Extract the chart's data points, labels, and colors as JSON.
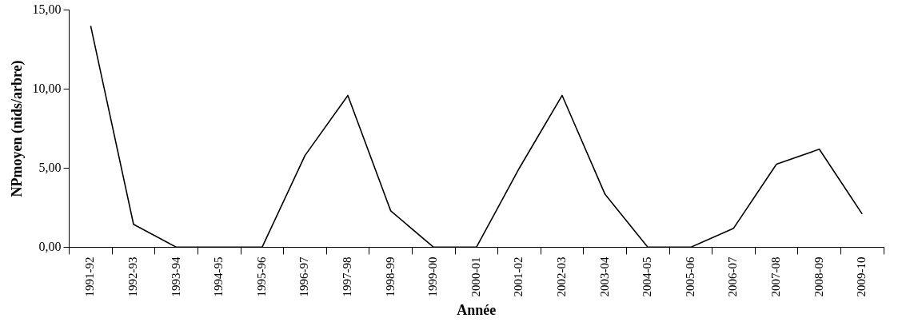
{
  "chart_data": {
    "type": "line",
    "xlabel": "Année",
    "ylabel": "NPmoyen (nids/arbre)",
    "categories": [
      "1991-92",
      "1992-93",
      "1993-94",
      "1994-95",
      "1995-96",
      "1996-97",
      "1997-98",
      "1998-99",
      "1999-00",
      "2000-01",
      "2001-02",
      "2002-03",
      "2003-04",
      "2004-05",
      "2005-06",
      "2006-07",
      "2007-08",
      "2008-09",
      "2009-10"
    ],
    "series": [
      {
        "color": "#000000",
        "values": [
          14.0,
          1.45,
          0,
          0,
          0,
          5.8,
          9.6,
          2.3,
          0,
          0,
          5.0,
          9.6,
          3.35,
          0,
          0,
          1.2,
          5.25,
          6.2,
          2.1
        ]
      }
    ],
    "ylim": [
      0,
      15
    ],
    "yticks": [
      {
        "value": 0,
        "label": "0,00"
      },
      {
        "value": 5,
        "label": "5,00"
      },
      {
        "value": 10,
        "label": "10,00"
      },
      {
        "value": 15,
        "label": "15,00"
      }
    ],
    "grid": false,
    "legend": false,
    "marker": "none",
    "line_style": "solid"
  }
}
